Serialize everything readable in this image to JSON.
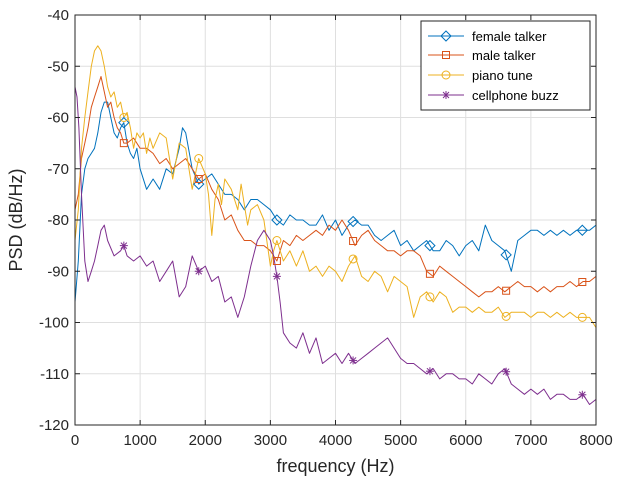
{
  "chart_data": {
    "type": "line",
    "xlabel": "frequency (Hz)",
    "ylabel": "PSD (dB/Hz)",
    "xlim": [
      0,
      8000
    ],
    "ylim": [
      -120,
      -40
    ],
    "xticks": [
      0,
      1000,
      2000,
      3000,
      4000,
      5000,
      6000,
      7000,
      8000
    ],
    "yticks": [
      -40,
      -50,
      -60,
      -70,
      -80,
      -90,
      -100,
      -110,
      -120
    ],
    "grid": true,
    "legend_position": "top-right",
    "series": [
      {
        "name": "female talker",
        "color": "#0072BD",
        "marker": "diamond",
        "x": [
          0,
          50,
          100,
          150,
          200,
          250,
          300,
          350,
          400,
          450,
          500,
          550,
          600,
          650,
          700,
          750,
          800,
          850,
          900,
          950,
          1000,
          1100,
          1200,
          1300,
          1400,
          1500,
          1600,
          1650,
          1700,
          1800,
          1900,
          2000,
          2100,
          2200,
          2300,
          2400,
          2500,
          2600,
          2700,
          2800,
          2900,
          3000,
          3100,
          3200,
          3300,
          3400,
          3500,
          3600,
          3700,
          3800,
          3900,
          4000,
          4100,
          4200,
          4300,
          4400,
          4500,
          4600,
          4700,
          4800,
          4900,
          5000,
          5100,
          5200,
          5300,
          5400,
          5500,
          5600,
          5700,
          5800,
          5900,
          6000,
          6100,
          6200,
          6300,
          6400,
          6500,
          6600,
          6700,
          6800,
          6900,
          7000,
          7100,
          7200,
          7300,
          7400,
          7500,
          7600,
          7700,
          7800,
          7900,
          8000
        ],
        "y": [
          -96,
          -88,
          -75,
          -70,
          -68,
          -67,
          -66,
          -63,
          -59,
          -57,
          -57,
          -60,
          -63,
          -64,
          -62,
          -61,
          -65,
          -67,
          -68,
          -66,
          -70,
          -74,
          -72,
          -74,
          -70,
          -71,
          -66,
          -62,
          -63,
          -70,
          -73,
          -72,
          -71,
          -73,
          -75,
          -75,
          -76,
          -78,
          -76,
          -76,
          -77,
          -78,
          -80,
          -81,
          -79,
          -80,
          -80,
          -81,
          -81,
          -79,
          -82,
          -80,
          -83,
          -81,
          -80,
          -81,
          -81,
          -83,
          -84,
          -83,
          -82,
          -85,
          -84,
          -86,
          -85,
          -84,
          -86,
          -86,
          -84,
          -85,
          -87,
          -85,
          -84,
          -86,
          -81,
          -84,
          -85,
          -86,
          -90,
          -84,
          -83,
          -82,
          -82,
          -83,
          -82,
          -83,
          -82,
          -83,
          -82,
          -82,
          -82,
          -81
        ]
      },
      {
        "name": "male talker",
        "color": "#D95319",
        "marker": "square",
        "x": [
          0,
          50,
          100,
          150,
          200,
          250,
          300,
          350,
          400,
          450,
          500,
          550,
          600,
          650,
          700,
          750,
          800,
          900,
          1000,
          1100,
          1200,
          1300,
          1400,
          1500,
          1600,
          1700,
          1800,
          1900,
          2000,
          2100,
          2200,
          2300,
          2400,
          2500,
          2600,
          2700,
          2800,
          2900,
          3000,
          3100,
          3200,
          3300,
          3400,
          3500,
          3600,
          3700,
          3800,
          3900,
          4000,
          4100,
          4200,
          4300,
          4400,
          4500,
          4600,
          4700,
          4800,
          4900,
          5000,
          5100,
          5200,
          5300,
          5400,
          5500,
          5600,
          5700,
          5800,
          5900,
          6000,
          6100,
          6200,
          6300,
          6400,
          6500,
          6600,
          6700,
          6800,
          6900,
          7000,
          7100,
          7200,
          7300,
          7400,
          7500,
          7600,
          7700,
          7800,
          7900,
          8000
        ],
        "y": [
          -78,
          -75,
          -68,
          -65,
          -62,
          -58,
          -56,
          -54,
          -52,
          -55,
          -58,
          -57,
          -60,
          -62,
          -63,
          -65,
          -65,
          -64,
          -66,
          -66,
          -67,
          -69,
          -68,
          -70,
          -69,
          -68,
          -70,
          -72,
          -71,
          -74,
          -76,
          -80,
          -79,
          -82,
          -84,
          -84,
          -85,
          -85,
          -86,
          -88,
          -84,
          -85,
          -83,
          -84,
          -83,
          -82,
          -83,
          -81,
          -82,
          -80,
          -82,
          -85,
          -83,
          -82,
          -84,
          -85,
          -86,
          -86,
          -87,
          -86,
          -86,
          -87,
          -90,
          -91,
          -89,
          -90,
          -91,
          -92,
          -93,
          -94,
          -95,
          -94,
          -94,
          -93,
          -94,
          -93,
          -92,
          -93,
          -93,
          -94,
          -93,
          -94,
          -93,
          -93,
          -92,
          -93,
          -92,
          -92,
          -91
        ]
      },
      {
        "name": "piano tune",
        "color": "#EDB120",
        "marker": "circle",
        "x": [
          0,
          50,
          100,
          150,
          200,
          250,
          300,
          350,
          400,
          450,
          500,
          550,
          600,
          650,
          700,
          750,
          800,
          850,
          900,
          950,
          1000,
          1050,
          1100,
          1150,
          1200,
          1300,
          1400,
          1500,
          1600,
          1700,
          1800,
          1900,
          2000,
          2050,
          2100,
          2150,
          2200,
          2250,
          2300,
          2400,
          2500,
          2550,
          2600,
          2650,
          2700,
          2800,
          2900,
          3000,
          3050,
          3100,
          3200,
          3300,
          3400,
          3500,
          3600,
          3700,
          3800,
          3900,
          4000,
          4100,
          4200,
          4300,
          4400,
          4500,
          4600,
          4700,
          4800,
          4900,
          5000,
          5100,
          5200,
          5300,
          5400,
          5500,
          5600,
          5700,
          5800,
          5900,
          6000,
          6100,
          6200,
          6300,
          6400,
          6500,
          6600,
          6700,
          6800,
          6900,
          7000,
          7100,
          7200,
          7300,
          7400,
          7500,
          7600,
          7700,
          7800,
          7900,
          8000
        ],
        "y": [
          -84,
          -78,
          -66,
          -60,
          -55,
          -50,
          -47,
          -46,
          -47,
          -50,
          -54,
          -56,
          -55,
          -58,
          -57,
          -60,
          -59,
          -62,
          -66,
          -63,
          -64,
          -63,
          -67,
          -64,
          -66,
          -63,
          -64,
          -72,
          -65,
          -66,
          -74,
          -68,
          -71,
          -75,
          -83,
          -76,
          -73,
          -77,
          -72,
          -74,
          -78,
          -73,
          -77,
          -81,
          -78,
          -77,
          -80,
          -89,
          -86,
          -84,
          -88,
          -86,
          -89,
          -86,
          -90,
          -89,
          -91,
          -89,
          -90,
          -92,
          -89,
          -87,
          -91,
          -92,
          -90,
          -91,
          -94,
          -91,
          -92,
          -93,
          -99,
          -95,
          -94,
          -96,
          -94,
          -95,
          -98,
          -97,
          -97,
          -98,
          -97,
          -98,
          -98,
          -97,
          -99,
          -98,
          -98,
          -98,
          -99,
          -98,
          -98,
          -99,
          -98,
          -99,
          -98,
          -99,
          -99,
          -99,
          -101
        ]
      },
      {
        "name": "cellphone buzz",
        "color": "#7E2F8E",
        "marker": "asterisk",
        "x": [
          0,
          30,
          60,
          100,
          150,
          200,
          250,
          300,
          350,
          400,
          450,
          500,
          600,
          700,
          750,
          800,
          900,
          1000,
          1100,
          1200,
          1300,
          1400,
          1500,
          1600,
          1700,
          1800,
          1900,
          2000,
          2100,
          2200,
          2300,
          2400,
          2500,
          2600,
          2700,
          2800,
          2900,
          3000,
          3050,
          3100,
          3150,
          3200,
          3300,
          3400,
          3500,
          3600,
          3700,
          3800,
          3900,
          4000,
          4100,
          4200,
          4300,
          4400,
          4500,
          4600,
          4700,
          4800,
          4900,
          5000,
          5100,
          5200,
          5300,
          5400,
          5500,
          5600,
          5700,
          5800,
          5900,
          6000,
          6100,
          6200,
          6300,
          6400,
          6500,
          6600,
          6700,
          6800,
          6900,
          7000,
          7100,
          7200,
          7300,
          7400,
          7500,
          7600,
          7700,
          7800,
          7900,
          8000
        ],
        "y": [
          -54,
          -56,
          -62,
          -75,
          -88,
          -92,
          -90,
          -88,
          -85,
          -82,
          -81,
          -84,
          -87,
          -86,
          -85,
          -87,
          -88,
          -87,
          -89,
          -88,
          -92,
          -90,
          -88,
          -95,
          -93,
          -87,
          -90,
          -89,
          -92,
          -91,
          -96,
          -95,
          -99,
          -95,
          -89,
          -84,
          -82,
          -84,
          -87,
          -91,
          -96,
          -102,
          -104,
          -105,
          -102,
          -106,
          -103,
          -108,
          -107,
          -106,
          -108,
          -106,
          -108,
          -107,
          -106,
          -105,
          -104,
          -103,
          -105,
          -107,
          -108,
          -108,
          -109,
          -110,
          -109,
          -111,
          -110,
          -110,
          -111,
          -111,
          -112,
          -110,
          -111,
          -112,
          -110,
          -109,
          -112,
          -113,
          -114,
          -113,
          -114,
          -113,
          -115,
          -114,
          -114,
          -115,
          -115,
          -114,
          -116,
          -115
        ]
      }
    ],
    "marker_x": [
      750,
      1900,
      3100,
      4270,
      5450,
      6620,
      7790
    ]
  }
}
